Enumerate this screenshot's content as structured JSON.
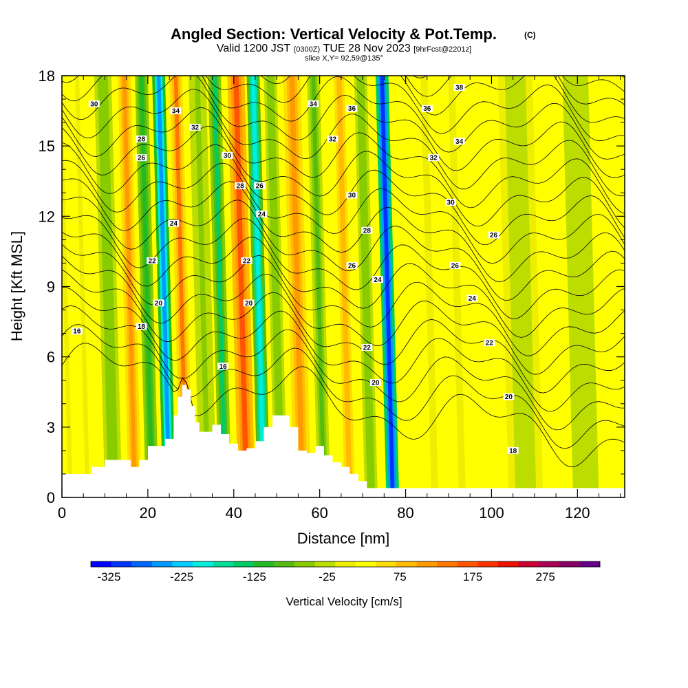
{
  "title": {
    "main": "Angled Section: Vertical Velocity & Pot.Temp.",
    "copyright": "(C)",
    "valid_prefix": "Valid 1200 JST",
    "valid_utc": "(0300Z)",
    "valid_date": "TUE 28 Nov 2023",
    "forecast": "[9hrFcst@2201z]",
    "slice": "slice X,Y= 92,59@135°"
  },
  "chart_data": {
    "type": "heatmap",
    "xlabel": "Distance [nm]",
    "ylabel": "Height [Kft MSL]",
    "xlim": [
      0,
      131
    ],
    "ylim": [
      0,
      18
    ],
    "x_ticks": [
      "0",
      "20",
      "40",
      "60",
      "80",
      "100",
      "120"
    ],
    "y_ticks": [
      "0",
      "3",
      "6",
      "9",
      "12",
      "15",
      "18"
    ],
    "x_tick_values": [
      0,
      20,
      40,
      60,
      80,
      100,
      120
    ],
    "y_tick_values": [
      0,
      3,
      6,
      9,
      12,
      15,
      18
    ],
    "colorbar": {
      "label": "Vertical Velocity [cm/s]",
      "ticks": [
        "-325",
        "-225",
        "-125",
        "-25",
        "75",
        "175",
        "275"
      ],
      "range": [
        -350,
        350
      ],
      "colors": [
        "#0000ff",
        "#0033ff",
        "#0066ff",
        "#0099ff",
        "#00ccff",
        "#00eedd",
        "#00dd99",
        "#00cc66",
        "#22bb22",
        "#55bb11",
        "#88cc00",
        "#bbdd00",
        "#eeee00",
        "#ffff00",
        "#ffdd00",
        "#ffbb00",
        "#ff9900",
        "#ff7700",
        "#ff5500",
        "#ff3300",
        "#ee1100",
        "#cc0033",
        "#aa0055",
        "#880066",
        "#660088"
      ]
    },
    "terrain_profile": {
      "distance_nm": [
        0,
        5,
        7,
        10,
        14,
        16,
        18,
        20,
        22,
        24,
        26,
        27,
        28,
        29,
        30,
        31,
        32,
        33,
        35,
        37,
        39,
        41,
        43,
        45,
        47,
        49,
        51,
        53,
        55,
        57,
        59,
        61,
        63,
        65,
        67,
        69,
        71,
        131
      ],
      "height_kft": [
        1.0,
        1.0,
        1.3,
        1.6,
        1.6,
        1.3,
        1.6,
        2.2,
        2.2,
        2.5,
        3.5,
        4.3,
        4.8,
        4.6,
        3.9,
        3.2,
        2.8,
        2.8,
        3.1,
        2.7,
        2.3,
        2.0,
        2.1,
        2.4,
        3.0,
        3.5,
        3.5,
        3.0,
        2.0,
        1.9,
        2.2,
        1.8,
        1.5,
        1.3,
        1.0,
        0.7,
        0.4,
        0.4
      ]
    },
    "vertical_velocity_bands": [
      {
        "center_nm": 4,
        "width_nm": 5,
        "value": 20
      },
      {
        "center_nm": 12,
        "width_nm": 4,
        "value": -60
      },
      {
        "center_nm": 17,
        "width_nm": 3,
        "value": 110
      },
      {
        "center_nm": 21,
        "width_nm": 3,
        "value": -115
      },
      {
        "center_nm": 25,
        "width_nm": 3,
        "value": -250
      },
      {
        "center_nm": 29,
        "width_nm": 3,
        "value": 130
      },
      {
        "center_nm": 34,
        "width_nm": 4,
        "value": -50
      },
      {
        "center_nm": 38,
        "width_nm": 3,
        "value": -130
      },
      {
        "center_nm": 43,
        "width_nm": 4,
        "value": 160
      },
      {
        "center_nm": 47,
        "width_nm": 3,
        "value": -210
      },
      {
        "center_nm": 51,
        "width_nm": 3,
        "value": -70
      },
      {
        "center_nm": 56,
        "width_nm": 4,
        "value": 120
      },
      {
        "center_nm": 61,
        "width_nm": 3,
        "value": -80
      },
      {
        "center_nm": 67,
        "width_nm": 4,
        "value": 70
      },
      {
        "center_nm": 72,
        "width_nm": 3,
        "value": -60
      },
      {
        "center_nm": 77,
        "width_nm": 3,
        "value": -320
      },
      {
        "center_nm": 82,
        "width_nm": 4,
        "value": 40
      },
      {
        "center_nm": 90,
        "width_nm": 8,
        "value": 25
      },
      {
        "center_nm": 108,
        "width_nm": 8,
        "value": -20
      },
      {
        "center_nm": 122,
        "width_nm": 6,
        "value": -40
      }
    ],
    "potential_temperature": {
      "units": "C",
      "isotherms_c": [
        16,
        17,
        18,
        19,
        20,
        21,
        22,
        23,
        24,
        25,
        26,
        27,
        28,
        29,
        30,
        31,
        32,
        33,
        34,
        35,
        36,
        37,
        38
      ],
      "base_height_kft_at_16C": 6.5,
      "spacing_kft": 0.75,
      "labels": [
        {
          "text": "30",
          "x_nm": 7.5,
          "y_kft": 16.8
        },
        {
          "text": "34",
          "x_nm": 26.5,
          "y_kft": 16.5
        },
        {
          "text": "32",
          "x_nm": 31,
          "y_kft": 15.8
        },
        {
          "text": "28",
          "x_nm": 18.5,
          "y_kft": 15.3
        },
        {
          "text": "26",
          "x_nm": 18.5,
          "y_kft": 14.5
        },
        {
          "text": "30",
          "x_nm": 38.5,
          "y_kft": 14.6
        },
        {
          "text": "28",
          "x_nm": 41.5,
          "y_kft": 13.3
        },
        {
          "text": "26",
          "x_nm": 46,
          "y_kft": 13.3
        },
        {
          "text": "24",
          "x_nm": 46.5,
          "y_kft": 12.1
        },
        {
          "text": "24",
          "x_nm": 26,
          "y_kft": 11.7
        },
        {
          "text": "22",
          "x_nm": 21,
          "y_kft": 10.1
        },
        {
          "text": "22",
          "x_nm": 43,
          "y_kft": 10.1
        },
        {
          "text": "20",
          "x_nm": 22.5,
          "y_kft": 8.3
        },
        {
          "text": "20",
          "x_nm": 43.5,
          "y_kft": 8.3
        },
        {
          "text": "18",
          "x_nm": 18.5,
          "y_kft": 7.3
        },
        {
          "text": "16",
          "x_nm": 3.5,
          "y_kft": 7.1
        },
        {
          "text": "16",
          "x_nm": 37.5,
          "y_kft": 5.6
        },
        {
          "text": "34",
          "x_nm": 58.5,
          "y_kft": 16.8
        },
        {
          "text": "36",
          "x_nm": 67.5,
          "y_kft": 16.6
        },
        {
          "text": "32",
          "x_nm": 63,
          "y_kft": 15.3
        },
        {
          "text": "30",
          "x_nm": 67.5,
          "y_kft": 12.9
        },
        {
          "text": "28",
          "x_nm": 71,
          "y_kft": 11.4
        },
        {
          "text": "26",
          "x_nm": 67.5,
          "y_kft": 9.9
        },
        {
          "text": "24",
          "x_nm": 73.5,
          "y_kft": 9.3
        },
        {
          "text": "22",
          "x_nm": 71,
          "y_kft": 6.4
        },
        {
          "text": "20",
          "x_nm": 73,
          "y_kft": 4.9
        },
        {
          "text": "38",
          "x_nm": 92.5,
          "y_kft": 17.5
        },
        {
          "text": "36",
          "x_nm": 85,
          "y_kft": 16.6
        },
        {
          "text": "34",
          "x_nm": 92.5,
          "y_kft": 15.2
        },
        {
          "text": "32",
          "x_nm": 86.5,
          "y_kft": 14.5
        },
        {
          "text": "30",
          "x_nm": 90.5,
          "y_kft": 12.6
        },
        {
          "text": "26",
          "x_nm": 100.5,
          "y_kft": 11.2
        },
        {
          "text": "26",
          "x_nm": 91.5,
          "y_kft": 9.9
        },
        {
          "text": "24",
          "x_nm": 95.5,
          "y_kft": 8.5
        },
        {
          "text": "22",
          "x_nm": 99.5,
          "y_kft": 6.6
        },
        {
          "text": "20",
          "x_nm": 104,
          "y_kft": 4.3
        },
        {
          "text": "18",
          "x_nm": 105,
          "y_kft": 2.0
        }
      ]
    }
  }
}
